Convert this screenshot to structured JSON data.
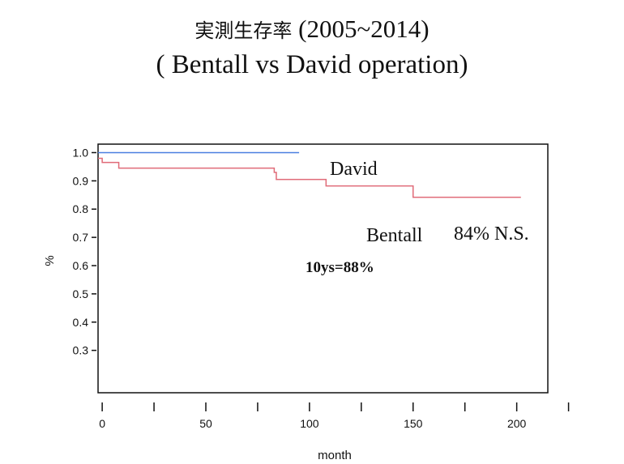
{
  "title": {
    "jp": "実測生存率",
    "range": "(2005~2014)",
    "subtitle": "( Bentall vs David operation)"
  },
  "colors": {
    "david": "#4a7fe0",
    "bentall": "#e06b78",
    "frame": "#111111"
  },
  "chart_data": {
    "type": "line",
    "xlabel": "month",
    "ylabel": "%",
    "xlim": [
      -2,
      215
    ],
    "ylim": [
      0.15,
      1.03
    ],
    "x_ticks": [
      0,
      50,
      100,
      150,
      200
    ],
    "x_minor_ticks": [
      25,
      75,
      125,
      175,
      225
    ],
    "y_ticks": [
      1.0,
      0.9,
      0.8,
      0.7,
      0.6,
      0.5,
      0.4,
      0.3
    ],
    "y_tick_labels": [
      "1.0",
      "0.9",
      "0.8",
      "0.7",
      "0.6",
      "0.5",
      "0.4",
      "0.3"
    ],
    "series": [
      {
        "name": "David",
        "color": "#4a7fe0",
        "steps": [
          [
            -2,
            1.0
          ],
          [
            95,
            1.0
          ]
        ]
      },
      {
        "name": "Bentall",
        "color": "#e06b78",
        "steps": [
          [
            -2,
            0.98
          ],
          [
            0,
            0.965
          ],
          [
            8,
            0.945
          ],
          [
            83,
            0.93
          ],
          [
            84,
            0.905
          ],
          [
            108,
            0.882
          ],
          [
            150,
            0.842
          ],
          [
            202,
            0.842
          ]
        ]
      }
    ],
    "annotations": {
      "david_label": "David",
      "bentall_label": "Bentall",
      "bentall_pct": "84% N.S.",
      "tenyear": "10ys=88%"
    }
  }
}
